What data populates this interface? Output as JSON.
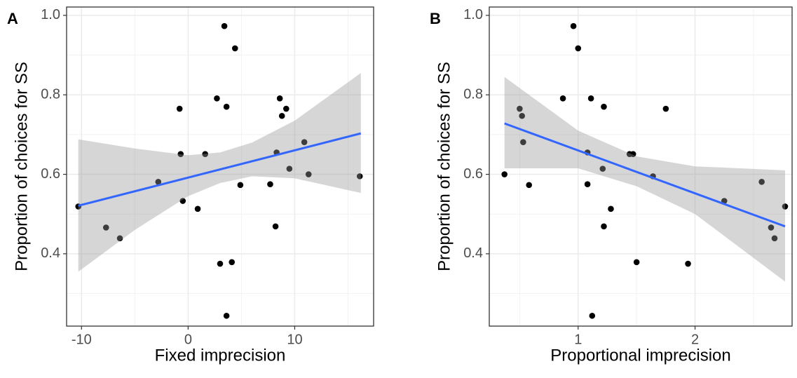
{
  "chart_data": [
    {
      "type": "scatter",
      "panel_label": "A",
      "xlabel": "Fixed imprecision",
      "ylabel": "Proportion of choices for SS",
      "x": [
        -10.3,
        -7.7,
        -6.4,
        -2.8,
        -0.8,
        -0.7,
        -0.5,
        0.9,
        1.6,
        2.7,
        3.0,
        3.4,
        3.6,
        3.6,
        4.1,
        4.4,
        4.9,
        7.7,
        8.2,
        8.3,
        8.6,
        8.8,
        9.2,
        9.5,
        10.9,
        11.3,
        16.1
      ],
      "values": [
        0.519,
        0.466,
        0.439,
        0.581,
        0.765,
        0.651,
        0.533,
        0.513,
        0.651,
        0.791,
        0.375,
        0.973,
        0.77,
        0.244,
        0.379,
        0.917,
        0.573,
        0.575,
        0.469,
        0.655,
        0.791,
        0.747,
        0.765,
        0.614,
        0.681,
        0.6,
        0.595
      ],
      "color": "#000000",
      "fit": {
        "x": [
          -10.3,
          16.2
        ],
        "y": [
          0.521,
          0.703
        ],
        "color": "#3366ff"
      },
      "band": {
        "x": [
          -10.3,
          -5,
          0,
          3,
          6,
          10,
          16.2
        ],
        "lower": [
          0.355,
          0.46,
          0.545,
          0.578,
          0.595,
          0.59,
          0.553
        ],
        "upper": [
          0.688,
          0.665,
          0.648,
          0.655,
          0.68,
          0.735,
          0.855
        ],
        "color": "#999999"
      },
      "xlim": [
        -11.4,
        17.4
      ],
      "ylim": [
        0.218,
        1.021
      ],
      "xticks": [
        -10,
        0,
        10
      ],
      "yticks": [
        0.4,
        0.6,
        0.8,
        {
          "value": 1.0,
          "label": "1.0"
        }
      ],
      "grid": true
    },
    {
      "type": "scatter",
      "panel_label": "B",
      "xlabel": "Proportional imprecision",
      "ylabel": "Proportion of choices for SS",
      "x": [
        0.37,
        0.5,
        0.52,
        0.53,
        0.58,
        0.96,
        0.87,
        1.0,
        1.11,
        1.08,
        1.08,
        1.12,
        1.21,
        1.22,
        1.22,
        1.28,
        1.44,
        1.47,
        1.5,
        1.64,
        1.75,
        1.94,
        2.25,
        2.57,
        2.65,
        2.68,
        2.77
      ],
      "values": [
        0.6,
        0.765,
        0.747,
        0.681,
        0.573,
        0.973,
        0.791,
        0.917,
        0.791,
        0.655,
        0.575,
        0.244,
        0.614,
        0.77,
        0.469,
        0.513,
        0.651,
        0.651,
        0.379,
        0.595,
        0.765,
        0.375,
        0.533,
        0.581,
        0.466,
        0.439,
        0.519
      ],
      "color": "#000000",
      "fit": {
        "x": [
          0.37,
          2.77
        ],
        "y": [
          0.728,
          0.469
        ],
        "color": "#3366ff"
      },
      "band": {
        "x": [
          0.37,
          1.0,
          1.5,
          2.0,
          2.77
        ],
        "lower": [
          0.615,
          0.615,
          0.57,
          0.5,
          0.33
        ],
        "upper": [
          0.845,
          0.71,
          0.645,
          0.62,
          0.61
        ],
        "color": "#999999"
      },
      "xlim": [
        0.24,
        2.83
      ],
      "ylim": [
        0.218,
        1.021
      ],
      "xticks": [
        1,
        2
      ],
      "yticks": [
        0.4,
        0.6,
        0.8,
        {
          "value": 1.0,
          "label": "1.0"
        }
      ],
      "grid": true
    }
  ]
}
